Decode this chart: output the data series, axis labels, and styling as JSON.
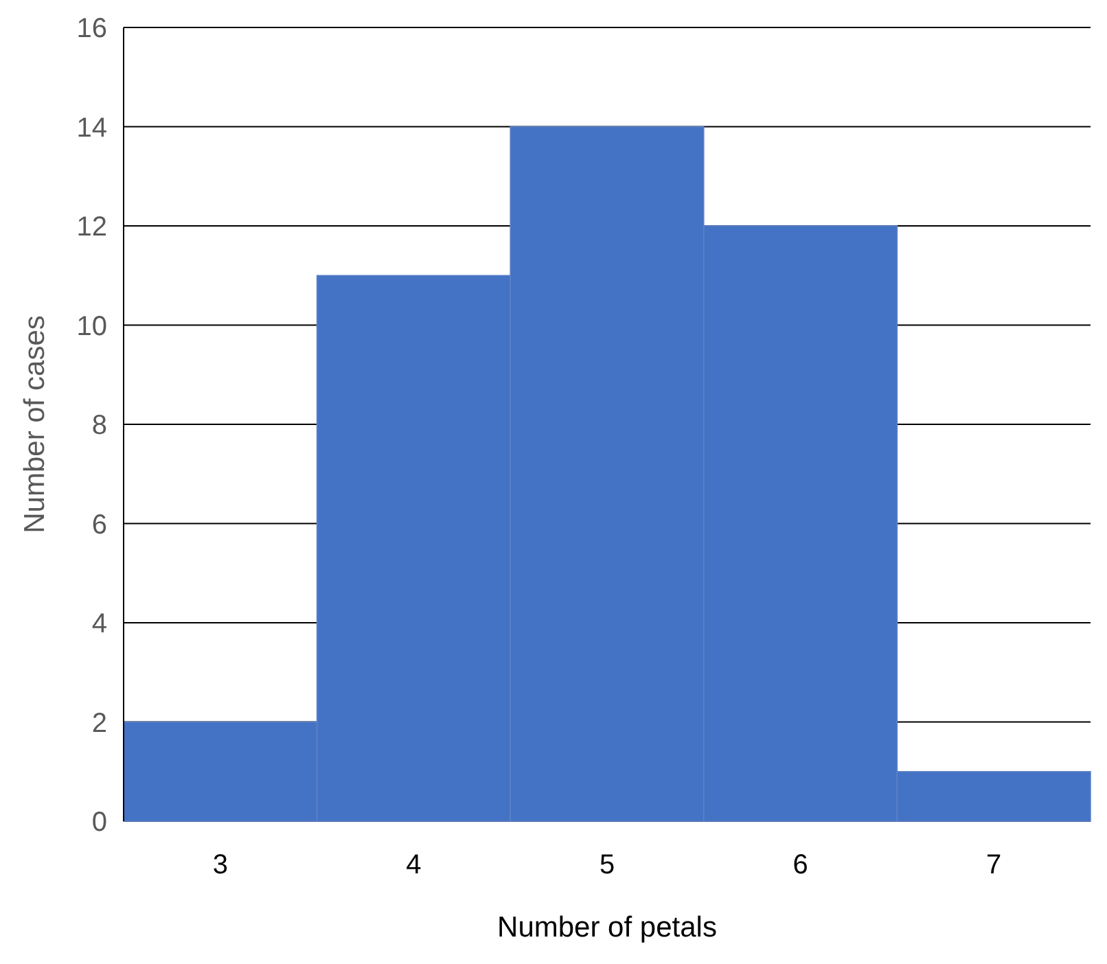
{
  "chart_data": {
    "type": "bar",
    "xlabel": "Number of petals",
    "ylabel": "Number of cases",
    "categories": [
      "3",
      "4",
      "5",
      "6",
      "7"
    ],
    "values": [
      2,
      11,
      14,
      12,
      1
    ],
    "color": "#4472c4",
    "ylim": [
      0,
      16
    ],
    "yticks": [
      0,
      2,
      4,
      6,
      8,
      10,
      12,
      14,
      16
    ],
    "grid": "y"
  }
}
